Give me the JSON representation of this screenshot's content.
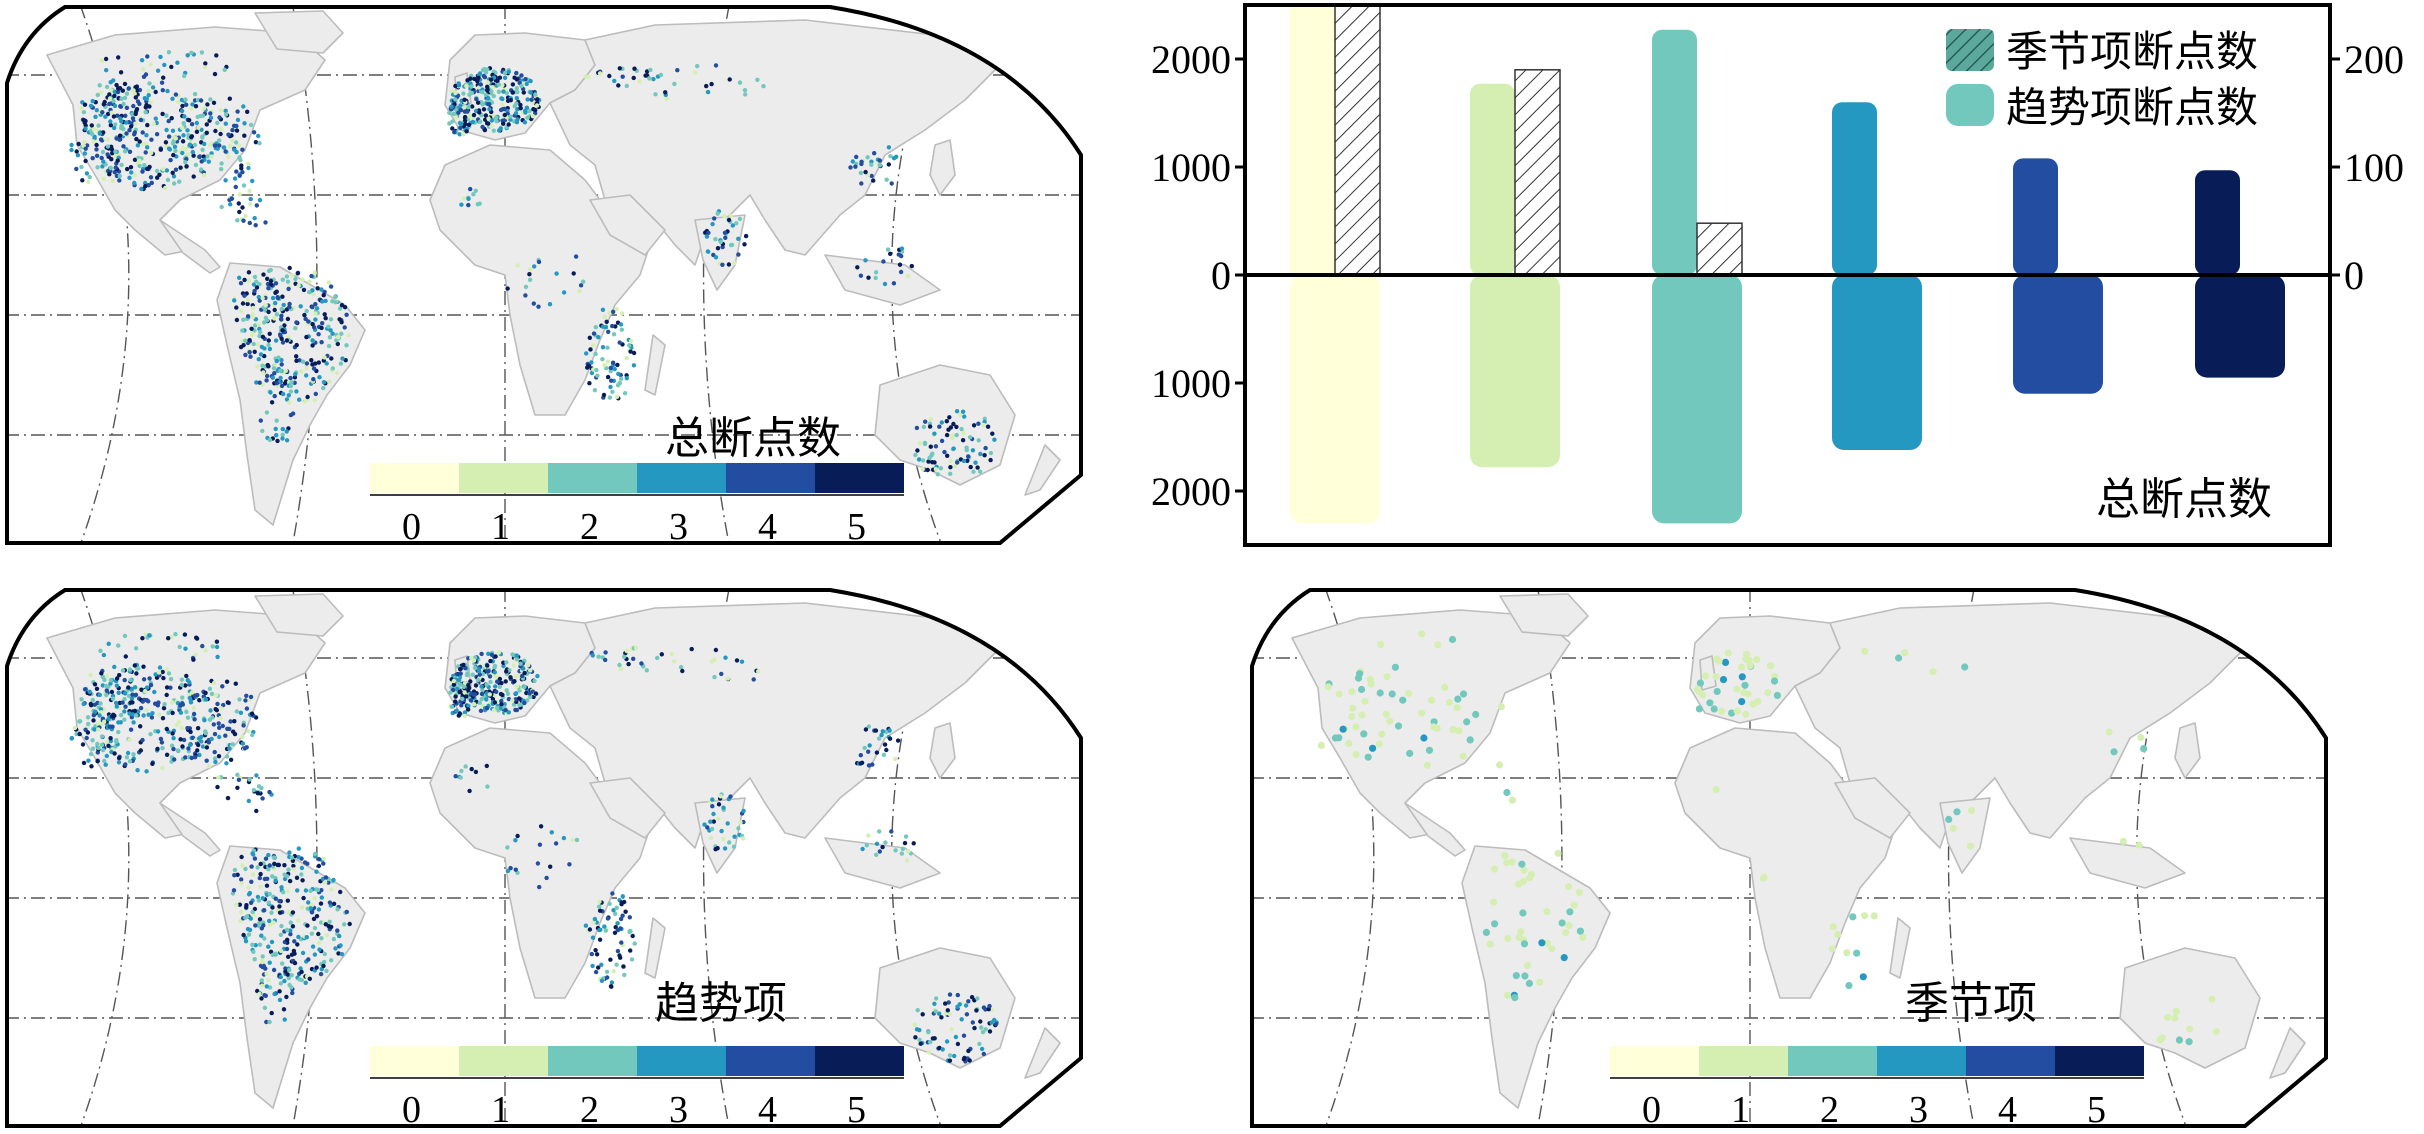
{
  "colors": {
    "scale": [
      "#ffffd9",
      "#d5efb3",
      "#73c8bd",
      "#2498c1",
      "#234da0",
      "#081d58"
    ],
    "land": "#ececec",
    "coast": "#bcbcbc",
    "grid": "#555555"
  },
  "maps": [
    {
      "id": "total",
      "title": "总断点数",
      "density": 1.0,
      "seasonal": false
    },
    {
      "id": "trend",
      "title": "趋势项",
      "density": 0.95,
      "seasonal": false
    },
    {
      "id": "season",
      "title": "季节项",
      "density": 0.12,
      "seasonal": true
    }
  ],
  "legend": {
    "ticks": [
      "0",
      "1",
      "2",
      "3",
      "4",
      "5"
    ]
  },
  "chart_data": {
    "type": "bar",
    "title": "总断点数",
    "categories": [
      "0",
      "1",
      "2",
      "3",
      "4",
      "5"
    ],
    "left_axis": {
      "ticks": [
        "2000",
        "1000",
        "0",
        "1000",
        "2000"
      ],
      "range": [
        -2300,
        2500
      ]
    },
    "right_axis": {
      "ticks": [
        "200",
        "100",
        "0"
      ],
      "range": [
        -230,
        250
      ]
    },
    "series": [
      {
        "name": "趋势项断点数",
        "axis": "left",
        "values": [
          null,
          1770,
          2270,
          1600,
          1080,
          970
        ]
      },
      {
        "name": "季节项断点数",
        "axis": "right",
        "hatched": true,
        "values": [
          250,
          190,
          48,
          null,
          null,
          null
        ]
      },
      {
        "name": "",
        "axis": "left",
        "direction": "down",
        "values": [
          2300,
          1780,
          2300,
          1620,
          1100,
          950
        ]
      }
    ],
    "legend": [
      "季节项断点数",
      "趋势项断点数"
    ],
    "legend_position": "top-right"
  }
}
